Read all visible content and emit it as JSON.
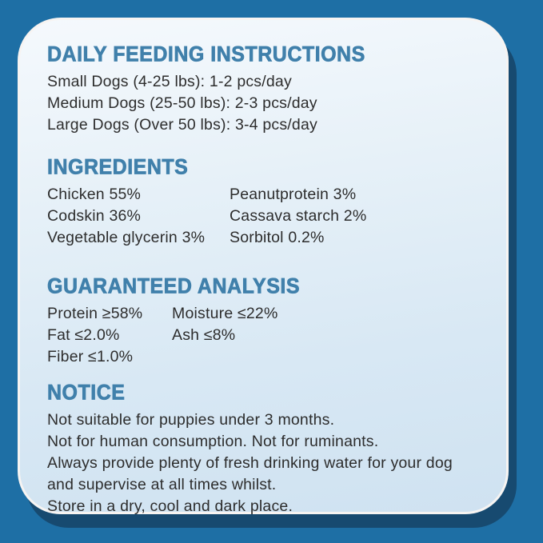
{
  "label": {
    "feeding": {
      "heading": "DAILY FEEDING INSTRUCTIONS",
      "lines": [
        "Small Dogs (4-25 lbs): 1-2 pcs/day",
        "Medium Dogs (25-50 lbs): 2-3 pcs/day",
        "Large Dogs (Over 50 lbs): 3-4 pcs/day"
      ]
    },
    "ingredients": {
      "heading": "INGREDIENTS",
      "left": [
        "Chicken 55%",
        "Codskin 36%",
        "Vegetable glycerin 3%"
      ],
      "right": [
        "Peanutprotein 3%",
        "Cassava starch 2%",
        "Sorbitol 0.2%"
      ]
    },
    "analysis": {
      "heading": "GUARANTEED ANALYSIS",
      "left": [
        "Protein ≥58%",
        "Fat ≤2.0%",
        "Fiber ≤1.0%"
      ],
      "right": [
        "Moisture ≤22%",
        "Ash ≤8%"
      ]
    },
    "notice": {
      "heading": "NOTICE",
      "lines": [
        "Not suitable for puppies under 3 months.",
        "Not for human consumption. Not for ruminants.",
        "Always provide plenty of fresh drinking water for your dog",
        "and supervise at all times whilst.",
        "Store in a dry, cool and dark place."
      ]
    }
  },
  "colors": {
    "outer_background": "#1e6fa5",
    "card_shadow": "#174a70",
    "card_border": "#f7f4f2",
    "card_gradient_top": "#f5f9fd",
    "card_gradient_bottom": "#cfe2f1",
    "heading_blue": "#4080ab",
    "body_text": "#2d2d2d"
  }
}
